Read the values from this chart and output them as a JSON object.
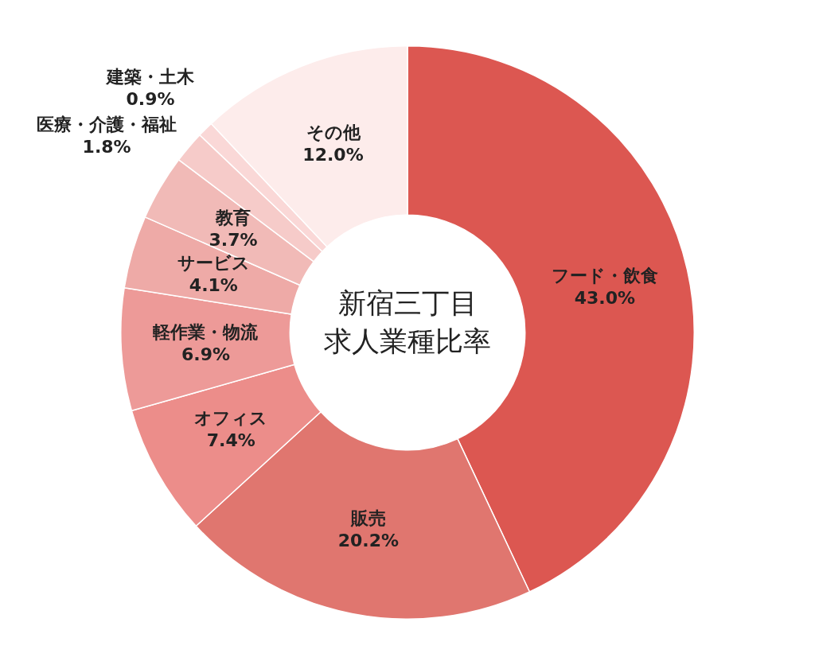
{
  "chart_data": {
    "type": "donut",
    "title": "新宿三丁目求人業種比率",
    "categories": [
      "フード・飲食",
      "販売",
      "オフィス",
      "軽作業・物流",
      "サービス",
      "教育",
      "医療・介護・福祉",
      "建築・土木",
      "その他"
    ],
    "values": [
      43.0,
      20.2,
      7.4,
      6.9,
      4.1,
      3.7,
      1.8,
      0.9,
      12.0
    ],
    "colors": [
      "#dc5751",
      "#e0766f",
      "#ec8d8a",
      "#ed9a98",
      "#eeaaa7",
      "#f1bab7",
      "#f6cbc9",
      "#fad8d7",
      "#fdeceb"
    ],
    "value_labels": [
      "43.0%",
      "20.2%",
      "7.4%",
      "6.9%",
      "4.1%",
      "3.7%",
      "1.8%",
      "0.9%",
      "12.0%"
    ]
  }
}
